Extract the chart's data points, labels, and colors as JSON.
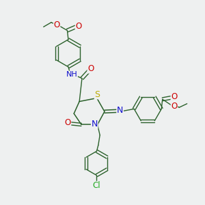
{
  "bg_color": "#eef0f0",
  "bond_color": "#2a602a",
  "atom_colors": {
    "N": "#1010cc",
    "O": "#cc0000",
    "S": "#bbaa00",
    "Cl": "#22aa22",
    "C": "#2a602a"
  },
  "layout": {
    "xlim": [
      0,
      10
    ],
    "ylim": [
      0,
      10
    ],
    "figsize": [
      3.0,
      3.0
    ],
    "dpi": 100
  }
}
